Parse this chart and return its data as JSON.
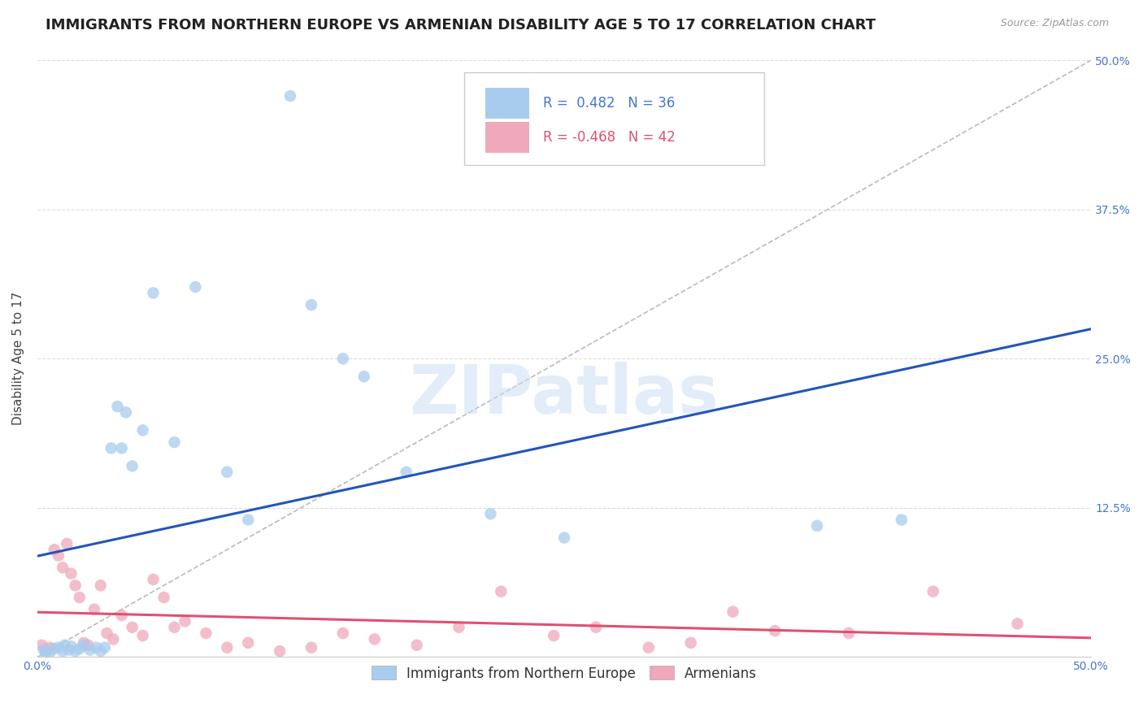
{
  "title": "IMMIGRANTS FROM NORTHERN EUROPE VS ARMENIAN DISABILITY AGE 5 TO 17 CORRELATION CHART",
  "source": "Source: ZipAtlas.com",
  "ylabel": "Disability Age 5 to 17",
  "xlim": [
    0.0,
    0.5
  ],
  "ylim": [
    0.0,
    0.5
  ],
  "xticks": [
    0.0,
    0.1,
    0.2,
    0.3,
    0.4,
    0.5
  ],
  "yticks": [
    0.0,
    0.125,
    0.25,
    0.375,
    0.5
  ],
  "xticklabels": [
    "0.0%",
    "",
    "",
    "",
    "",
    "50.0%"
  ],
  "yticklabels": [
    "",
    "12.5%",
    "25.0%",
    "37.5%",
    "50.0%"
  ],
  "legend1_label": "Immigrants from Northern Europe",
  "legend2_label": "Armenians",
  "R1": 0.482,
  "N1": 36,
  "R2": -0.468,
  "N2": 42,
  "blue_color": "#A8CCEE",
  "pink_color": "#F0A8BC",
  "blue_line_color": "#2255BB",
  "pink_line_color": "#E05070",
  "diagonal_color": "#BBBBBB",
  "watermark": "ZIPatlas",
  "blue_scatter_x": [
    0.003,
    0.004,
    0.006,
    0.008,
    0.01,
    0.012,
    0.013,
    0.015,
    0.016,
    0.018,
    0.02,
    0.022,
    0.025,
    0.028,
    0.03,
    0.032,
    0.035,
    0.038,
    0.04,
    0.042,
    0.045,
    0.05,
    0.055,
    0.065,
    0.075,
    0.09,
    0.1,
    0.12,
    0.13,
    0.145,
    0.155,
    0.175,
    0.215,
    0.25,
    0.41,
    0.37
  ],
  "blue_scatter_y": [
    0.006,
    0.003,
    0.004,
    0.007,
    0.008,
    0.005,
    0.01,
    0.006,
    0.009,
    0.005,
    0.007,
    0.01,
    0.006,
    0.008,
    0.005,
    0.008,
    0.175,
    0.21,
    0.175,
    0.205,
    0.16,
    0.19,
    0.305,
    0.18,
    0.31,
    0.155,
    0.115,
    0.47,
    0.295,
    0.25,
    0.235,
    0.155,
    0.12,
    0.1,
    0.115,
    0.11
  ],
  "pink_scatter_x": [
    0.002,
    0.004,
    0.006,
    0.008,
    0.01,
    0.012,
    0.014,
    0.016,
    0.018,
    0.02,
    0.022,
    0.024,
    0.027,
    0.03,
    0.033,
    0.036,
    0.04,
    0.045,
    0.05,
    0.055,
    0.06,
    0.065,
    0.07,
    0.08,
    0.09,
    0.1,
    0.115,
    0.13,
    0.145,
    0.16,
    0.18,
    0.2,
    0.22,
    0.245,
    0.265,
    0.29,
    0.31,
    0.33,
    0.35,
    0.385,
    0.425,
    0.465
  ],
  "pink_scatter_y": [
    0.01,
    0.006,
    0.008,
    0.09,
    0.085,
    0.075,
    0.095,
    0.07,
    0.06,
    0.05,
    0.012,
    0.01,
    0.04,
    0.06,
    0.02,
    0.015,
    0.035,
    0.025,
    0.018,
    0.065,
    0.05,
    0.025,
    0.03,
    0.02,
    0.008,
    0.012,
    0.005,
    0.008,
    0.02,
    0.015,
    0.01,
    0.025,
    0.055,
    0.018,
    0.025,
    0.008,
    0.012,
    0.038,
    0.022,
    0.02,
    0.055,
    0.028
  ],
  "grid_color": "#DDDDDD",
  "background_color": "#FFFFFF",
  "title_fontsize": 13,
  "axis_label_fontsize": 11,
  "tick_fontsize": 10,
  "legend_fontsize": 12,
  "marker_size": 110
}
